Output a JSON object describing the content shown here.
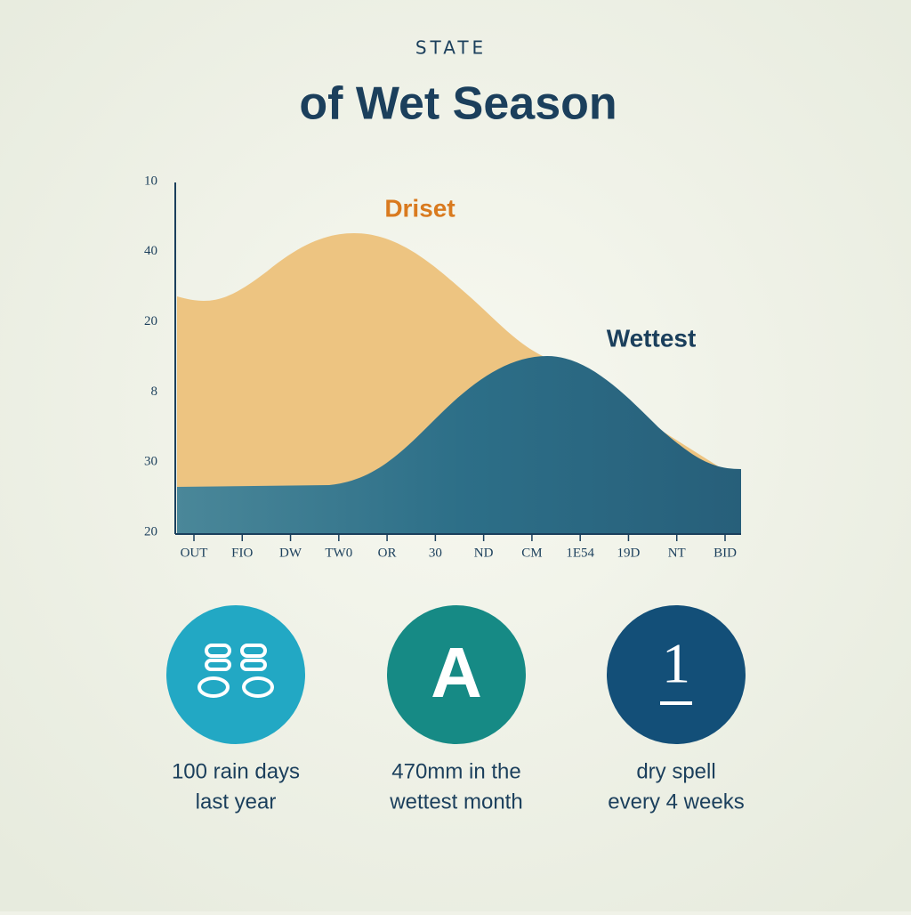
{
  "header": {
    "kicker": "STATE",
    "title": "of Wet Season"
  },
  "chart": {
    "y_labels": [
      "10",
      "40",
      "20",
      "8",
      "30",
      "20"
    ],
    "x_labels": [
      "OUT",
      "FIO",
      "DW",
      "TW0",
      "OR",
      "30",
      "ND",
      "CM",
      "1E54",
      "19D",
      "NT",
      "BID"
    ],
    "series_labels": [
      "Driset",
      "Wettest"
    ]
  },
  "stats": [
    {
      "icon": "",
      "lines": [
        "100 rain days",
        "last year"
      ]
    },
    {
      "icon": "A",
      "lines": [
        "470mm in the",
        "wettest month"
      ]
    },
    {
      "icon": "1",
      "lines": [
        "dry spell",
        "every 4 weeks"
      ]
    }
  ]
}
